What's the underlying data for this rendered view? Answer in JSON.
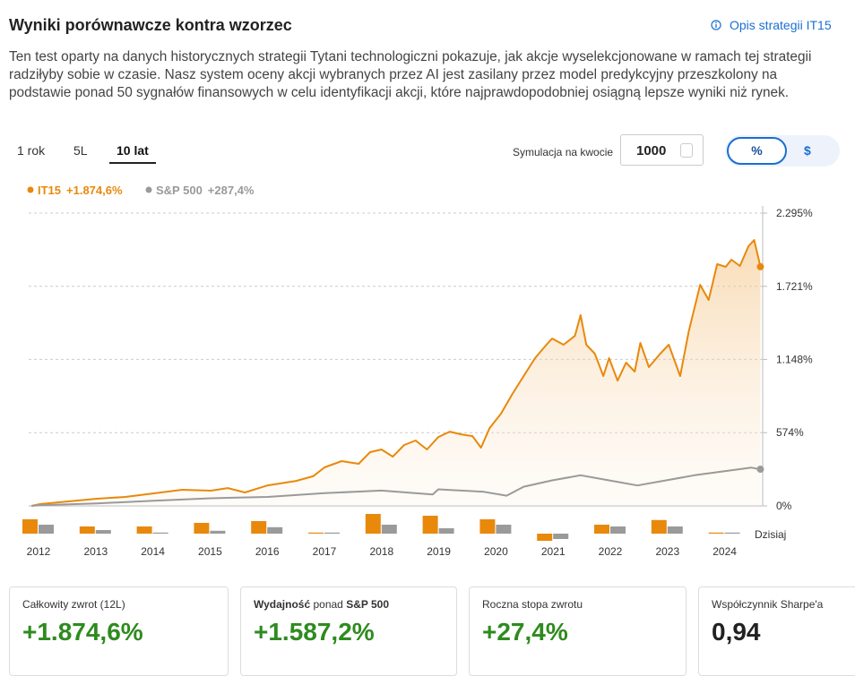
{
  "header": {
    "title": "Wyniki porównawcze kontra wzorzec",
    "link": "Opis strategii IT15"
  },
  "description": "Ten test oparty na danych historycznych strategii Tytani technologiczni pokazuje, jak akcje wyselekcjonowane w ramach tej strategii radziłyby sobie w czasie. Nasz system oceny akcji wybranych przez AI jest zasilany przez model predykcyjny przeszkolony na podstawie ponad 50 sygnałów finansowych w celu identyfikacji akcji, które najprawdopodobniej osiągną lepsze wyniki niż rynek.",
  "tabs": [
    "1 rok",
    "5L",
    "10 lat"
  ],
  "simulation": {
    "label": "Symulacja na kwocie",
    "amount": "1000"
  },
  "toggle": [
    "%",
    "$"
  ],
  "chart_data": [
    {
      "type": "line",
      "xlim": [
        2011.8,
        2024.7
      ],
      "ylim": [
        0,
        2295
      ],
      "yticks": [
        {
          "value": 2295,
          "label": "2.295%"
        },
        {
          "value": 1721,
          "label": "1.721%"
        },
        {
          "value": 1148,
          "label": "1.148%"
        },
        {
          "value": 574,
          "label": "574%"
        },
        {
          "value": 0,
          "label": "0%"
        }
      ],
      "grid": true,
      "series": [
        {
          "name": "IT15",
          "total_label": "+1.874,6%",
          "color": "#e8890c",
          "x": [
            2011.85,
            2012.0,
            2012.5,
            2013.0,
            2013.5,
            2014.0,
            2014.5,
            2015.0,
            2015.3,
            2015.6,
            2016.0,
            2016.5,
            2016.8,
            2017.0,
            2017.3,
            2017.6,
            2017.8,
            2018.0,
            2018.2,
            2018.4,
            2018.6,
            2018.8,
            2019.0,
            2019.2,
            2019.4,
            2019.6,
            2019.75,
            2019.9,
            2020.1,
            2020.3,
            2020.5,
            2020.7,
            2020.9,
            2021.0,
            2021.2,
            2021.4,
            2021.5,
            2021.6,
            2021.75,
            2021.9,
            2022.0,
            2022.15,
            2022.3,
            2022.45,
            2022.55,
            2022.7,
            2022.9,
            2023.05,
            2023.25,
            2023.4,
            2023.6,
            2023.75,
            2023.9,
            2024.05,
            2024.15,
            2024.3,
            2024.45,
            2024.55,
            2024.66
          ],
          "values": [
            0,
            14,
            35,
            56,
            70,
            98,
            126,
            119,
            140,
            105,
            161,
            196,
            232,
            302,
            351,
            330,
            421,
            442,
            386,
            477,
            512,
            442,
            540,
            582,
            561,
            547,
            456,
            610,
            723,
            877,
            1018,
            1158,
            1263,
            1312,
            1263,
            1333,
            1495,
            1263,
            1193,
            1018,
            1158,
            982,
            1123,
            1053,
            1277,
            1088,
            1193,
            1263,
            1018,
            1368,
            1733,
            1614,
            1895,
            1874,
            1930,
            1881,
            2035,
            2084,
            1874.6
          ]
        },
        {
          "name": "S&P 500",
          "total_label": "+287,4%",
          "color": "#9a9a9a",
          "x": [
            2011.85,
            2012.0,
            2013.0,
            2014.0,
            2015.0,
            2016.0,
            2017.0,
            2018.0,
            2018.9,
            2019.0,
            2019.8,
            2020.2,
            2020.5,
            2021.0,
            2021.5,
            2022.0,
            2022.5,
            2023.0,
            2023.5,
            2024.0,
            2024.5,
            2024.66
          ],
          "values": [
            0,
            5,
            20,
            40,
            60,
            70,
            100,
            120,
            90,
            130,
            110,
            80,
            150,
            200,
            240,
            200,
            160,
            200,
            240,
            270,
            300,
            287.4
          ]
        }
      ]
    },
    {
      "type": "bar",
      "categories": [
        "2012",
        "2013",
        "2014",
        "2015",
        "2016",
        "2017",
        "2018",
        "2019",
        "2020",
        "2021",
        "2022",
        "2023",
        "2024"
      ],
      "ylim": [
        -25,
        60
      ],
      "annotation": "Dzisiaj",
      "series": [
        {
          "name": "IT15",
          "color": "#e8890c",
          "values": [
            40,
            20,
            20,
            30,
            35,
            2,
            55,
            50,
            40,
            -20,
            25,
            38,
            1
          ]
        },
        {
          "name": "S&P 500",
          "color": "#9a9a9a",
          "values": [
            25,
            10,
            0,
            8,
            18,
            3,
            25,
            15,
            25,
            -15,
            20,
            20,
            1
          ]
        }
      ]
    }
  ],
  "cards": [
    {
      "label": [
        "Całkowity zwrot (12L)"
      ],
      "value": "+1.874,6%"
    },
    {
      "label": [
        "Wydajność",
        " ponad ",
        "S&P 500"
      ],
      "value": "+1.587,2%"
    },
    {
      "label": [
        "Roczna stopa zwrotu"
      ],
      "value": "+27,4%"
    },
    {
      "label": [
        "Współczynnik Sharpe'a"
      ],
      "value": "0,94"
    }
  ]
}
